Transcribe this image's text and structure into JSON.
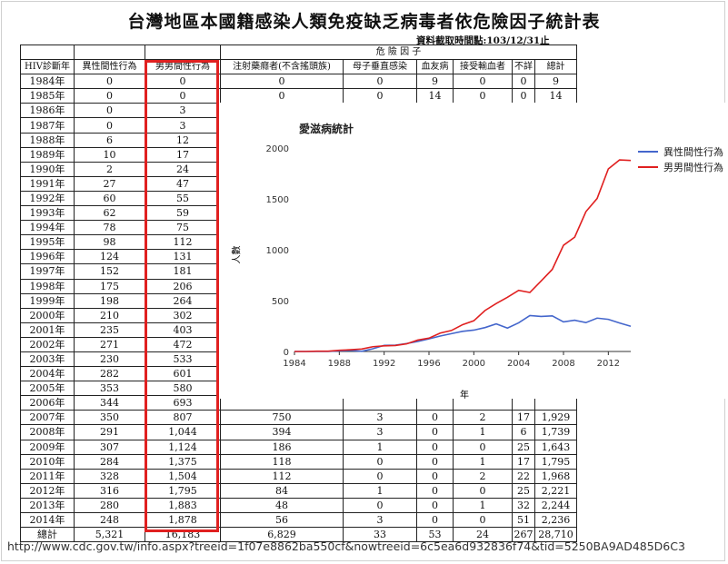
{
  "page": {
    "title": "台灣地區本國籍感染人類免疫缺乏病毒者依危險因子統計表",
    "date_note": "資料截取時間點:103/12/31止",
    "url": "http://www.cdc.gov.tw/info.aspx?treeid=1f07e8862ba550cf&nowtreeid=6c5ea6d932836f74&tid=5250BA9AD485D6C3"
  },
  "table": {
    "group_header": "危 險 因 子",
    "headers": [
      "HIV診斷年",
      "異性間性行為",
      "男男間性行為",
      "注射藥癮者(不含搖頭族)",
      "母子垂直感染",
      "血友病",
      "接受輸血者",
      "不詳",
      "總計"
    ],
    "rows": [
      [
        "1984年",
        "0",
        "0",
        "0",
        "0",
        "9",
        "0",
        "0",
        "9"
      ],
      [
        "1985年",
        "0",
        "0",
        "0",
        "0",
        "14",
        "0",
        "0",
        "14"
      ],
      [
        "1986年",
        "0",
        "3",
        "",
        "",
        "",
        "",
        "",
        ""
      ],
      [
        "1987年",
        "0",
        "3",
        "",
        "",
        "",
        "",
        "",
        ""
      ],
      [
        "1988年",
        "6",
        "12",
        "",
        "",
        "",
        "",
        "",
        ""
      ],
      [
        "1989年",
        "10",
        "17",
        "",
        "",
        "",
        "",
        "",
        ""
      ],
      [
        "1990年",
        "2",
        "24",
        "",
        "",
        "",
        "",
        "",
        ""
      ],
      [
        "1991年",
        "27",
        "47",
        "",
        "",
        "",
        "",
        "",
        ""
      ],
      [
        "1992年",
        "60",
        "55",
        "",
        "",
        "",
        "",
        "",
        ""
      ],
      [
        "1993年",
        "62",
        "59",
        "",
        "",
        "",
        "",
        "",
        ""
      ],
      [
        "1994年",
        "78",
        "75",
        "",
        "",
        "",
        "",
        "",
        ""
      ],
      [
        "1995年",
        "98",
        "112",
        "",
        "",
        "",
        "",
        "",
        ""
      ],
      [
        "1996年",
        "124",
        "131",
        "",
        "",
        "",
        "",
        "",
        ""
      ],
      [
        "1997年",
        "152",
        "181",
        "",
        "",
        "",
        "",
        "",
        ""
      ],
      [
        "1998年",
        "175",
        "206",
        "",
        "",
        "",
        "",
        "",
        ""
      ],
      [
        "1999年",
        "198",
        "264",
        "",
        "",
        "",
        "",
        "",
        ""
      ],
      [
        "2000年",
        "210",
        "302",
        "",
        "",
        "",
        "",
        "",
        ""
      ],
      [
        "2001年",
        "235",
        "403",
        "",
        "",
        "",
        "",
        "",
        ""
      ],
      [
        "2002年",
        "271",
        "472",
        "",
        "",
        "",
        "",
        "",
        ""
      ],
      [
        "2003年",
        "230",
        "533",
        "",
        "",
        "",
        "",
        "",
        ""
      ],
      [
        "2004年",
        "282",
        "601",
        "",
        "",
        "",
        "",
        "",
        ""
      ],
      [
        "2005年",
        "353",
        "580",
        "",
        "",
        "",
        "",
        "",
        ""
      ],
      [
        "2006年",
        "344",
        "693",
        "",
        "",
        "",
        "",
        "",
        ""
      ],
      [
        "2007年",
        "350",
        "807",
        "750",
        "3",
        "0",
        "2",
        "17",
        "1,929"
      ],
      [
        "2008年",
        "291",
        "1,044",
        "394",
        "3",
        "0",
        "1",
        "6",
        "1,739"
      ],
      [
        "2009年",
        "307",
        "1,124",
        "186",
        "1",
        "0",
        "0",
        "25",
        "1,643"
      ],
      [
        "2010年",
        "284",
        "1,375",
        "118",
        "0",
        "0",
        "1",
        "17",
        "1,795"
      ],
      [
        "2011年",
        "328",
        "1,504",
        "112",
        "0",
        "0",
        "2",
        "22",
        "1,968"
      ],
      [
        "2012年",
        "316",
        "1,795",
        "84",
        "1",
        "0",
        "0",
        "25",
        "2,221"
      ],
      [
        "2013年",
        "280",
        "1,883",
        "48",
        "0",
        "0",
        "1",
        "32",
        "2,244"
      ],
      [
        "2014年",
        "248",
        "1,878",
        "56",
        "3",
        "0",
        "0",
        "51",
        "2,236"
      ],
      [
        "總計",
        "5,321",
        "16,183",
        "6,829",
        "33",
        "53",
        "24",
        "267",
        "28,710"
      ]
    ]
  },
  "chart_data": {
    "type": "line",
    "title": "愛滋病統計",
    "xlabel": "年",
    "ylabel": "人數",
    "xlim": [
      1984,
      2014
    ],
    "ylim": [
      0,
      2000
    ],
    "xticks": [
      "1984",
      "1988",
      "1992",
      "1996",
      "2000",
      "2004",
      "2008",
      "2012"
    ],
    "yticks": [
      "0",
      "500",
      "1000",
      "1500",
      "2000"
    ],
    "legend": "right",
    "grid": false,
    "x": [
      1984,
      1985,
      1986,
      1987,
      1988,
      1989,
      1990,
      1991,
      1992,
      1993,
      1994,
      1995,
      1996,
      1997,
      1998,
      1999,
      2000,
      2001,
      2002,
      2003,
      2004,
      2005,
      2006,
      2007,
      2008,
      2009,
      2010,
      2011,
      2012,
      2013,
      2014
    ],
    "series": [
      {
        "name": "異性間性行為",
        "color": "#4466cc",
        "values": [
          0,
          0,
          0,
          0,
          6,
          10,
          2,
          27,
          60,
          62,
          78,
          98,
          124,
          152,
          175,
          198,
          210,
          235,
          271,
          230,
          282,
          353,
          344,
          350,
          291,
          307,
          284,
          328,
          316,
          280,
          248
        ]
      },
      {
        "name": "男男間性行為",
        "color": "#e02020",
        "values": [
          0,
          0,
          3,
          3,
          12,
          17,
          24,
          47,
          55,
          59,
          75,
          112,
          131,
          181,
          206,
          264,
          302,
          403,
          472,
          533,
          601,
          580,
          693,
          807,
          1044,
          1124,
          1375,
          1504,
          1795,
          1883,
          1878
        ]
      }
    ]
  }
}
